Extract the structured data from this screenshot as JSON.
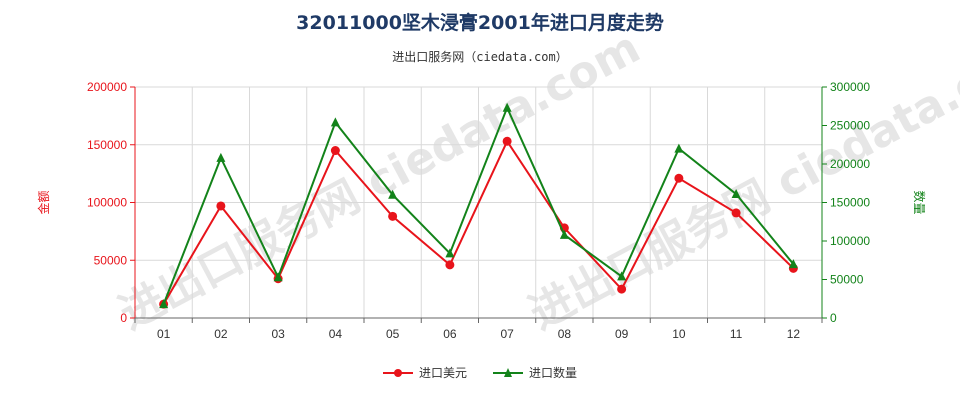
{
  "title": "32011000坚木浸膏2001年进口月度走势",
  "subtitle": "进出口服务网（ciedata.com）",
  "watermark": "进出口服务网 ciedata.com",
  "colors": {
    "usd": "#e8141b",
    "qty": "#13831a",
    "grid": "#d9d9d9",
    "axis": "#666666"
  },
  "chart_data": {
    "type": "line",
    "categories": [
      "01",
      "02",
      "03",
      "04",
      "05",
      "06",
      "07",
      "08",
      "09",
      "10",
      "11",
      "12"
    ],
    "y_left": {
      "label": "金额",
      "range": [
        0,
        200000
      ],
      "ticks": [
        "0",
        "50000",
        "100000",
        "150000",
        "200000"
      ]
    },
    "y_right": {
      "label": "数量",
      "range": [
        0,
        300000
      ],
      "ticks": [
        "0",
        "50000",
        "100000",
        "150000",
        "200000",
        "250000",
        "300000"
      ]
    },
    "series": [
      {
        "name": "进口美元",
        "axis": "left",
        "color": "#e8141b",
        "marker": "circle",
        "values": [
          12000,
          97000,
          34000,
          145000,
          88000,
          46000,
          153000,
          78000,
          25000,
          121000,
          91000,
          43000
        ]
      },
      {
        "name": "进口数量",
        "axis": "right",
        "color": "#13831a",
        "marker": "triangle",
        "values": [
          18000,
          208000,
          53000,
          254000,
          160000,
          84000,
          273000,
          108000,
          54000,
          220000,
          161000,
          70000
        ]
      }
    ],
    "grid": true,
    "legend_position": "bottom-center"
  }
}
